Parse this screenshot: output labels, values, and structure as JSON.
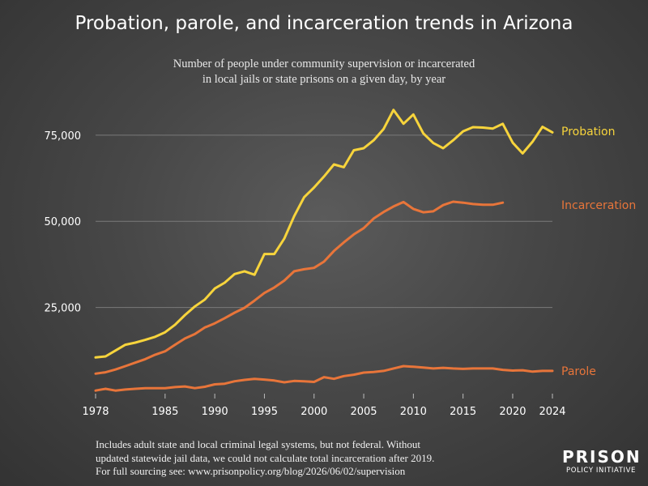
{
  "title": "Probation, parole, and incarceration trends in Arizona",
  "subtitle_line1": "Number of people under community supervision or incarcerated",
  "subtitle_line2": "in local jails or state prisons on a given day, by year",
  "footnote_line1": "Includes adult state and local criminal legal systems, but not federal. Without",
  "footnote_line2": "updated statewide jail data, we could not calculate total incarceration after 2019.",
  "footnote_line3": "For full sourcing see: www.prisonpolicy.org/blog/2026/06/02/supervision",
  "logo_top": "PRISON",
  "logo_bottom": "POLICY INITIATIVE",
  "chart_data": {
    "type": "line",
    "title": "Probation, parole, and incarceration trends in Arizona",
    "subtitle": "Number of people under community supervision or incarcerated in local jails or state prisons on a given day, by year",
    "xlabel": "",
    "ylabel": "",
    "xlim": [
      1978,
      2024
    ],
    "ylim": [
      0,
      86000
    ],
    "x_ticks": [
      1978,
      1985,
      1990,
      1995,
      2000,
      2005,
      2010,
      2015,
      2020,
      2024
    ],
    "y_ticks": [
      25000,
      50000,
      75000
    ],
    "y_tick_labels": [
      "25,000",
      "50,000",
      "75,000"
    ],
    "grid": "horizontal",
    "legend": "direct labels at right end of each line",
    "series": [
      {
        "name": "Probation",
        "color": "#f7d43c",
        "points": [
          [
            1978,
            10500
          ],
          [
            1979,
            10800
          ],
          [
            1980,
            12500
          ],
          [
            1981,
            14200
          ],
          [
            1982,
            14800
          ],
          [
            1983,
            15600
          ],
          [
            1984,
            16500
          ],
          [
            1985,
            17800
          ],
          [
            1986,
            20000
          ],
          [
            1987,
            22800
          ],
          [
            1988,
            25300
          ],
          [
            1989,
            27300
          ],
          [
            1990,
            30500
          ],
          [
            1991,
            32200
          ],
          [
            1992,
            34700
          ],
          [
            1993,
            35500
          ],
          [
            1994,
            34500
          ],
          [
            1995,
            40500
          ],
          [
            1996,
            40500
          ],
          [
            1997,
            45000
          ],
          [
            1998,
            51500
          ],
          [
            1999,
            57000
          ],
          [
            2000,
            59800
          ],
          [
            2001,
            63000
          ],
          [
            2002,
            66500
          ],
          [
            2003,
            65700
          ],
          [
            2004,
            70600
          ],
          [
            2005,
            71200
          ],
          [
            2006,
            73500
          ],
          [
            2007,
            76800
          ],
          [
            2008,
            82300
          ],
          [
            2009,
            78300
          ],
          [
            2010,
            81000
          ],
          [
            2011,
            75500
          ],
          [
            2012,
            72700
          ],
          [
            2013,
            71200
          ],
          [
            2014,
            73500
          ],
          [
            2015,
            76100
          ],
          [
            2016,
            77300
          ],
          [
            2017,
            77200
          ],
          [
            2018,
            76900
          ],
          [
            2019,
            78300
          ],
          [
            2020,
            72800
          ],
          [
            2021,
            69700
          ],
          [
            2022,
            73100
          ],
          [
            2023,
            77400
          ],
          [
            2024,
            75800
          ]
        ]
      },
      {
        "name": "Incarceration",
        "color": "#e8753a",
        "points": [
          [
            1978,
            5800
          ],
          [
            1979,
            6200
          ],
          [
            1980,
            7000
          ],
          [
            1981,
            8000
          ],
          [
            1982,
            9000
          ],
          [
            1983,
            10000
          ],
          [
            1984,
            11300
          ],
          [
            1985,
            12300
          ],
          [
            1986,
            14200
          ],
          [
            1987,
            16000
          ],
          [
            1988,
            17300
          ],
          [
            1989,
            19200
          ],
          [
            1990,
            20400
          ],
          [
            1991,
            21900
          ],
          [
            1992,
            23500
          ],
          [
            1993,
            24900
          ],
          [
            1994,
            27000
          ],
          [
            1995,
            29200
          ],
          [
            1996,
            30800
          ],
          [
            1997,
            32800
          ],
          [
            1998,
            35500
          ],
          [
            1999,
            36100
          ],
          [
            2000,
            36500
          ],
          [
            2001,
            38300
          ],
          [
            2002,
            41400
          ],
          [
            2003,
            43900
          ],
          [
            2004,
            46200
          ],
          [
            2005,
            48000
          ],
          [
            2006,
            50800
          ],
          [
            2007,
            52700
          ],
          [
            2008,
            54300
          ],
          [
            2009,
            55600
          ],
          [
            2010,
            53600
          ],
          [
            2011,
            52600
          ],
          [
            2012,
            52900
          ],
          [
            2013,
            54700
          ],
          [
            2014,
            55700
          ],
          [
            2015,
            55400
          ],
          [
            2016,
            55000
          ],
          [
            2017,
            54800
          ],
          [
            2018,
            54800
          ],
          [
            2019,
            55400
          ]
        ]
      },
      {
        "name": "Parole",
        "color": "#e8753a",
        "points": [
          [
            1978,
            900
          ],
          [
            1979,
            1400
          ],
          [
            1980,
            900
          ],
          [
            1981,
            1200
          ],
          [
            1982,
            1400
          ],
          [
            1983,
            1600
          ],
          [
            1984,
            1600
          ],
          [
            1985,
            1600
          ],
          [
            1986,
            1900
          ],
          [
            1987,
            2100
          ],
          [
            1988,
            1600
          ],
          [
            1989,
            2000
          ],
          [
            1990,
            2700
          ],
          [
            1991,
            2900
          ],
          [
            1992,
            3600
          ],
          [
            1993,
            4000
          ],
          [
            1994,
            4300
          ],
          [
            1995,
            4100
          ],
          [
            1996,
            3800
          ],
          [
            1997,
            3300
          ],
          [
            1998,
            3700
          ],
          [
            1999,
            3600
          ],
          [
            2000,
            3400
          ],
          [
            2001,
            4800
          ],
          [
            2002,
            4300
          ],
          [
            2003,
            5100
          ],
          [
            2004,
            5500
          ],
          [
            2005,
            6100
          ],
          [
            2006,
            6300
          ],
          [
            2007,
            6600
          ],
          [
            2008,
            7300
          ],
          [
            2009,
            8000
          ],
          [
            2010,
            7800
          ],
          [
            2011,
            7600
          ],
          [
            2012,
            7300
          ],
          [
            2013,
            7500
          ],
          [
            2014,
            7300
          ],
          [
            2015,
            7200
          ],
          [
            2016,
            7300
          ],
          [
            2017,
            7300
          ],
          [
            2018,
            7300
          ],
          [
            2019,
            6900
          ],
          [
            2020,
            6700
          ],
          [
            2021,
            6800
          ],
          [
            2022,
            6400
          ],
          [
            2023,
            6600
          ],
          [
            2024,
            6600
          ]
        ]
      }
    ]
  }
}
